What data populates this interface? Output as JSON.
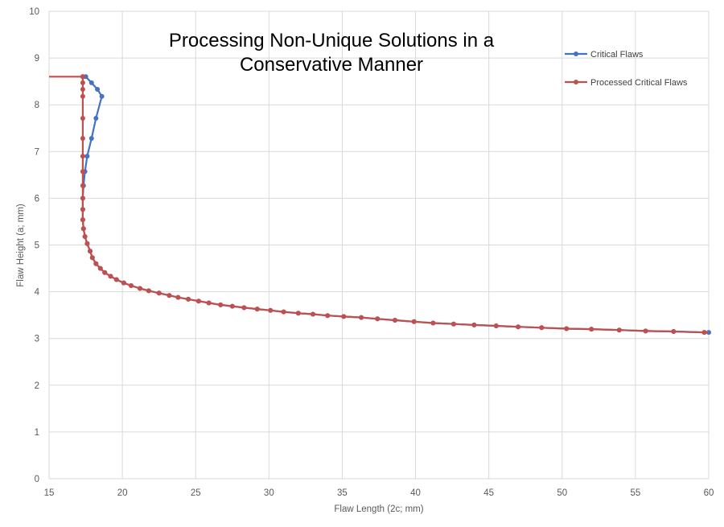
{
  "chart_data": {
    "type": "line",
    "title_lines": [
      "Processing Non-Unique Solutions in a",
      "Conservative Manner"
    ],
    "xlabel": "Flaw Length (2c; mm)",
    "ylabel": "Flaw Height (a; mm)",
    "xlim": [
      15,
      60
    ],
    "ylim": [
      0,
      10
    ],
    "xticks": [
      15,
      20,
      25,
      30,
      35,
      40,
      45,
      50,
      55,
      60
    ],
    "yticks": [
      0,
      1,
      2,
      3,
      4,
      5,
      6,
      7,
      8,
      9,
      10
    ],
    "grid": true,
    "legend_position": "top-right",
    "series": [
      {
        "name": "Critical Flaws",
        "color": "#4472C4",
        "points": [
          [
            17.3,
            8.6
          ],
          [
            17.5,
            8.6
          ],
          [
            17.9,
            8.47
          ],
          [
            18.3,
            8.33
          ],
          [
            18.6,
            8.18
          ],
          [
            18.2,
            7.71
          ],
          [
            17.9,
            7.28
          ],
          [
            17.6,
            6.9
          ],
          [
            17.45,
            6.57
          ],
          [
            17.35,
            6.27
          ],
          [
            17.3,
            6.0
          ],
          [
            17.3,
            5.76
          ],
          [
            17.3,
            5.54
          ],
          [
            17.35,
            5.35
          ],
          [
            17.45,
            5.18
          ],
          [
            17.6,
            5.03
          ],
          [
            17.8,
            4.87
          ],
          [
            17.95,
            4.73
          ],
          [
            18.2,
            4.6
          ],
          [
            18.5,
            4.5
          ],
          [
            18.8,
            4.41
          ],
          [
            19.2,
            4.33
          ],
          [
            19.6,
            4.26
          ],
          [
            20.1,
            4.19
          ],
          [
            20.6,
            4.13
          ],
          [
            21.2,
            4.07
          ],
          [
            21.8,
            4.02
          ],
          [
            22.5,
            3.97
          ],
          [
            23.2,
            3.92
          ],
          [
            23.8,
            3.88
          ],
          [
            24.5,
            3.84
          ],
          [
            25.2,
            3.8
          ],
          [
            25.9,
            3.76
          ],
          [
            26.7,
            3.72
          ],
          [
            27.5,
            3.69
          ],
          [
            28.3,
            3.66
          ],
          [
            29.2,
            3.63
          ],
          [
            30.1,
            3.6
          ],
          [
            31.0,
            3.57
          ],
          [
            32.0,
            3.54
          ],
          [
            33.0,
            3.52
          ],
          [
            34.0,
            3.49
          ],
          [
            35.1,
            3.47
          ],
          [
            36.3,
            3.45
          ],
          [
            37.4,
            3.42
          ],
          [
            38.6,
            3.39
          ],
          [
            39.9,
            3.36
          ],
          [
            41.2,
            3.33
          ],
          [
            42.6,
            3.31
          ],
          [
            44.0,
            3.29
          ],
          [
            45.5,
            3.27
          ],
          [
            47.0,
            3.25
          ],
          [
            48.6,
            3.23
          ],
          [
            50.3,
            3.21
          ],
          [
            52.0,
            3.2
          ],
          [
            53.9,
            3.18
          ],
          [
            55.7,
            3.16
          ],
          [
            57.6,
            3.15
          ],
          [
            59.7,
            3.13
          ],
          [
            60.0,
            3.13
          ]
        ]
      },
      {
        "name": "Processed Critical Flaws",
        "color": "#C0504D",
        "points": [
          [
            15.0,
            8.6
          ],
          [
            17.3,
            8.6
          ],
          [
            17.3,
            8.47
          ],
          [
            17.3,
            8.33
          ],
          [
            17.3,
            8.18
          ],
          [
            17.3,
            7.71
          ],
          [
            17.3,
            7.28
          ],
          [
            17.3,
            6.9
          ],
          [
            17.3,
            6.57
          ],
          [
            17.3,
            6.27
          ],
          [
            17.3,
            6.0
          ],
          [
            17.3,
            5.76
          ],
          [
            17.3,
            5.54
          ],
          [
            17.35,
            5.35
          ],
          [
            17.45,
            5.18
          ],
          [
            17.6,
            5.03
          ],
          [
            17.8,
            4.87
          ],
          [
            17.95,
            4.73
          ],
          [
            18.2,
            4.6
          ],
          [
            18.5,
            4.5
          ],
          [
            18.8,
            4.41
          ],
          [
            19.2,
            4.33
          ],
          [
            19.6,
            4.26
          ],
          [
            20.1,
            4.19
          ],
          [
            20.6,
            4.13
          ],
          [
            21.2,
            4.07
          ],
          [
            21.8,
            4.02
          ],
          [
            22.5,
            3.97
          ],
          [
            23.2,
            3.92
          ],
          [
            23.8,
            3.88
          ],
          [
            24.5,
            3.84
          ],
          [
            25.2,
            3.8
          ],
          [
            25.9,
            3.76
          ],
          [
            26.7,
            3.72
          ],
          [
            27.5,
            3.69
          ],
          [
            28.3,
            3.66
          ],
          [
            29.2,
            3.63
          ],
          [
            30.1,
            3.6
          ],
          [
            31.0,
            3.57
          ],
          [
            32.0,
            3.54
          ],
          [
            33.0,
            3.52
          ],
          [
            34.0,
            3.49
          ],
          [
            35.1,
            3.47
          ],
          [
            36.3,
            3.45
          ],
          [
            37.4,
            3.42
          ],
          [
            38.6,
            3.39
          ],
          [
            39.9,
            3.36
          ],
          [
            41.2,
            3.33
          ],
          [
            42.6,
            3.31
          ],
          [
            44.0,
            3.29
          ],
          [
            45.5,
            3.27
          ],
          [
            47.0,
            3.25
          ],
          [
            48.6,
            3.23
          ],
          [
            50.3,
            3.21
          ],
          [
            52.0,
            3.2
          ],
          [
            53.9,
            3.18
          ],
          [
            55.7,
            3.16
          ],
          [
            57.6,
            3.15
          ],
          [
            59.7,
            3.13
          ],
          [
            60.0,
            3.13
          ]
        ],
        "hide_marker_indices": [
          0,
          59
        ]
      }
    ]
  }
}
